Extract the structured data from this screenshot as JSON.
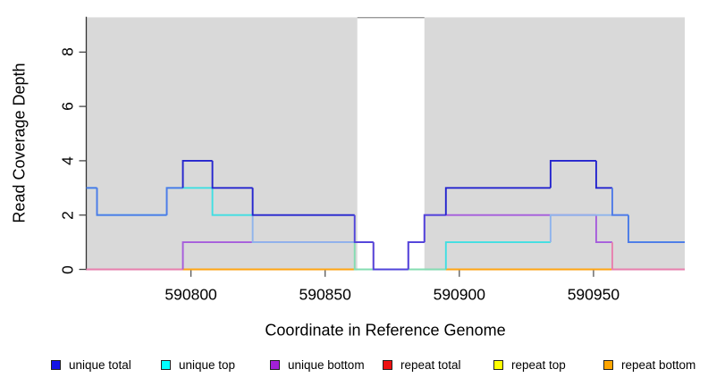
{
  "chart_data": {
    "type": "line",
    "subtype": "step-coverage-plot",
    "title": "",
    "xlabel": "Coordinate in Reference Genome",
    "ylabel": "Read Coverage Depth",
    "xlim": [
      590761,
      590984
    ],
    "ylim": [
      0,
      9.28
    ],
    "grid": false,
    "legend_position": "bottom",
    "x_ticks": [
      {
        "value": 590800,
        "label": "590800"
      },
      {
        "value": 590850,
        "label": "590850"
      },
      {
        "value": 590900,
        "label": "590900"
      },
      {
        "value": 590950,
        "label": "590950"
      }
    ],
    "y_ticks": [
      {
        "value": 0,
        "label": "0"
      },
      {
        "value": 2,
        "label": "2"
      },
      {
        "value": 4,
        "label": "4"
      },
      {
        "value": 6,
        "label": "6"
      },
      {
        "value": 8,
        "label": "8"
      }
    ],
    "highlight_regions": [
      {
        "from": 590761,
        "to": 590862,
        "color": "#d9d9d9"
      },
      {
        "from": 590887,
        "to": 590984,
        "color": "#d9d9d9"
      }
    ],
    "gap_region": [
      590862,
      590887
    ],
    "series": [
      {
        "name": "repeat total",
        "color": "#dd2121",
        "steps": [
          [
            590761,
            0
          ]
        ]
      },
      {
        "name": "repeat top",
        "color": "#ffff00",
        "steps": [
          [
            590761,
            0
          ]
        ]
      },
      {
        "name": "repeat bottom",
        "color": "#ffa513",
        "steps": [
          [
            590761,
            0
          ]
        ]
      },
      {
        "name": "unique bottom",
        "color": "#a55cdc",
        "steps": [
          [
            590761,
            0
          ],
          [
            590797,
            1
          ],
          [
            590868,
            0
          ],
          [
            590881,
            1
          ],
          [
            590887,
            2
          ],
          [
            590951,
            1
          ],
          [
            590957,
            0
          ]
        ]
      },
      {
        "name": "unique top",
        "color": "#3fdfe2",
        "steps": [
          [
            590761,
            3
          ],
          [
            590765,
            2
          ],
          [
            590791,
            3
          ],
          [
            590808,
            2
          ],
          [
            590823,
            1
          ],
          [
            590861,
            0
          ],
          [
            590895,
            1
          ],
          [
            590934,
            2
          ],
          [
            590963,
            1
          ]
        ]
      },
      {
        "name": "unique total",
        "color": "#2424ce",
        "steps": [
          [
            590761,
            3
          ],
          [
            590765,
            2
          ],
          [
            590791,
            3
          ],
          [
            590797,
            4
          ],
          [
            590808,
            3
          ],
          [
            590823,
            2
          ],
          [
            590861,
            1
          ],
          [
            590868,
            0
          ],
          [
            590881,
            1
          ],
          [
            590887,
            2
          ],
          [
            590895,
            3
          ],
          [
            590934,
            4
          ],
          [
            590951,
            3
          ],
          [
            590957,
            2
          ],
          [
            590963,
            1
          ]
        ]
      }
    ],
    "overlap_colors": {
      "total_over_top": "#4e7ae8",
      "total_over_bottom": "#5044da",
      "top_over_bottom": "#8fb4ec",
      "top_at_zero": "#84dcb2",
      "bottom_at_zero": "#e87fae"
    }
  },
  "legend": {
    "items": [
      {
        "label": "unique total",
        "color": "#1313e6"
      },
      {
        "label": "unique top",
        "color": "#00ffff"
      },
      {
        "label": "unique bottom",
        "color": "#a220d6"
      },
      {
        "label": "repeat total",
        "color": "#ee1010"
      },
      {
        "label": "repeat top",
        "color": "#ffff00"
      },
      {
        "label": "repeat bottom",
        "color": "#ffa500"
      }
    ]
  }
}
